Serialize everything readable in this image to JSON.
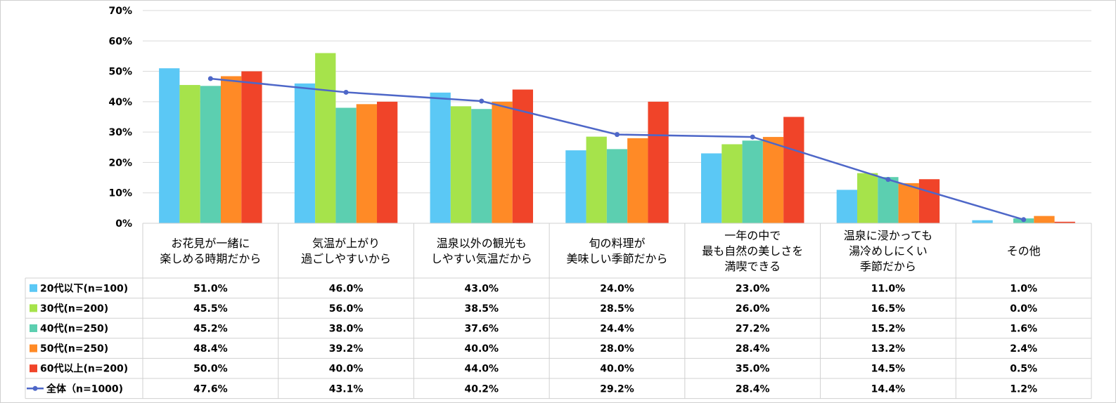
{
  "chart_data": {
    "type": "bar",
    "categories": [
      [
        "お花見が一緒に",
        "楽しめる時期だから"
      ],
      [
        "気温が上がり",
        "過ごしやすいから"
      ],
      [
        "温泉以外の観光も",
        "しやすい気温だから"
      ],
      [
        "旬の料理が",
        "美味しい季節だから"
      ],
      [
        "一年の中で",
        "最も自然の美しさを",
        "満喫できる"
      ],
      [
        "温泉に浸かっても",
        "湯冷めしにくい",
        "季節だから"
      ],
      [
        "その他"
      ]
    ],
    "yticks": [
      "0%",
      "10%",
      "20%",
      "30%",
      "40%",
      "50%",
      "60%",
      "70%"
    ],
    "ylim": [
      0,
      70
    ],
    "grid": true,
    "legend": "data-table",
    "series": [
      {
        "name": "20代以下(n=100)",
        "kind": "bar",
        "color": "#5bc8f5",
        "values": [
          51.0,
          46.0,
          43.0,
          24.0,
          23.0,
          11.0,
          1.0
        ],
        "labels": [
          "51.0%",
          "46.0%",
          "43.0%",
          "24.0%",
          "23.0%",
          "11.0%",
          "1.0%"
        ]
      },
      {
        "name": "30代(n=200)",
        "kind": "bar",
        "color": "#a6e34b",
        "values": [
          45.5,
          56.0,
          38.5,
          28.5,
          26.0,
          16.5,
          0.0
        ],
        "labels": [
          "45.5%",
          "56.0%",
          "38.5%",
          "28.5%",
          "26.0%",
          "16.5%",
          "0.0%"
        ]
      },
      {
        "name": "40代(n=250)",
        "kind": "bar",
        "color": "#5ccfb0",
        "values": [
          45.2,
          38.0,
          37.6,
          24.4,
          27.2,
          15.2,
          1.6
        ],
        "labels": [
          "45.2%",
          "38.0%",
          "37.6%",
          "24.4%",
          "27.2%",
          "15.2%",
          "1.6%"
        ]
      },
      {
        "name": "50代(n=250)",
        "kind": "bar",
        "color": "#ff8a26",
        "values": [
          48.4,
          39.2,
          40.0,
          28.0,
          28.4,
          13.2,
          2.4
        ],
        "labels": [
          "48.4%",
          "39.2%",
          "40.0%",
          "28.0%",
          "28.4%",
          "13.2%",
          "2.4%"
        ]
      },
      {
        "name": "60代以上(n=200)",
        "kind": "bar",
        "color": "#f04429",
        "values": [
          50.0,
          40.0,
          44.0,
          40.0,
          35.0,
          14.5,
          0.5
        ],
        "labels": [
          "50.0%",
          "40.0%",
          "44.0%",
          "40.0%",
          "35.0%",
          "14.5%",
          "0.5%"
        ]
      },
      {
        "name": "全体（n=1000)",
        "kind": "line",
        "color": "#4e67c8",
        "values": [
          47.6,
          43.1,
          40.2,
          29.2,
          28.4,
          14.4,
          1.2
        ],
        "labels": [
          "47.6%",
          "43.1%",
          "40.2%",
          "29.2%",
          "28.4%",
          "14.4%",
          "1.2%"
        ]
      }
    ]
  }
}
